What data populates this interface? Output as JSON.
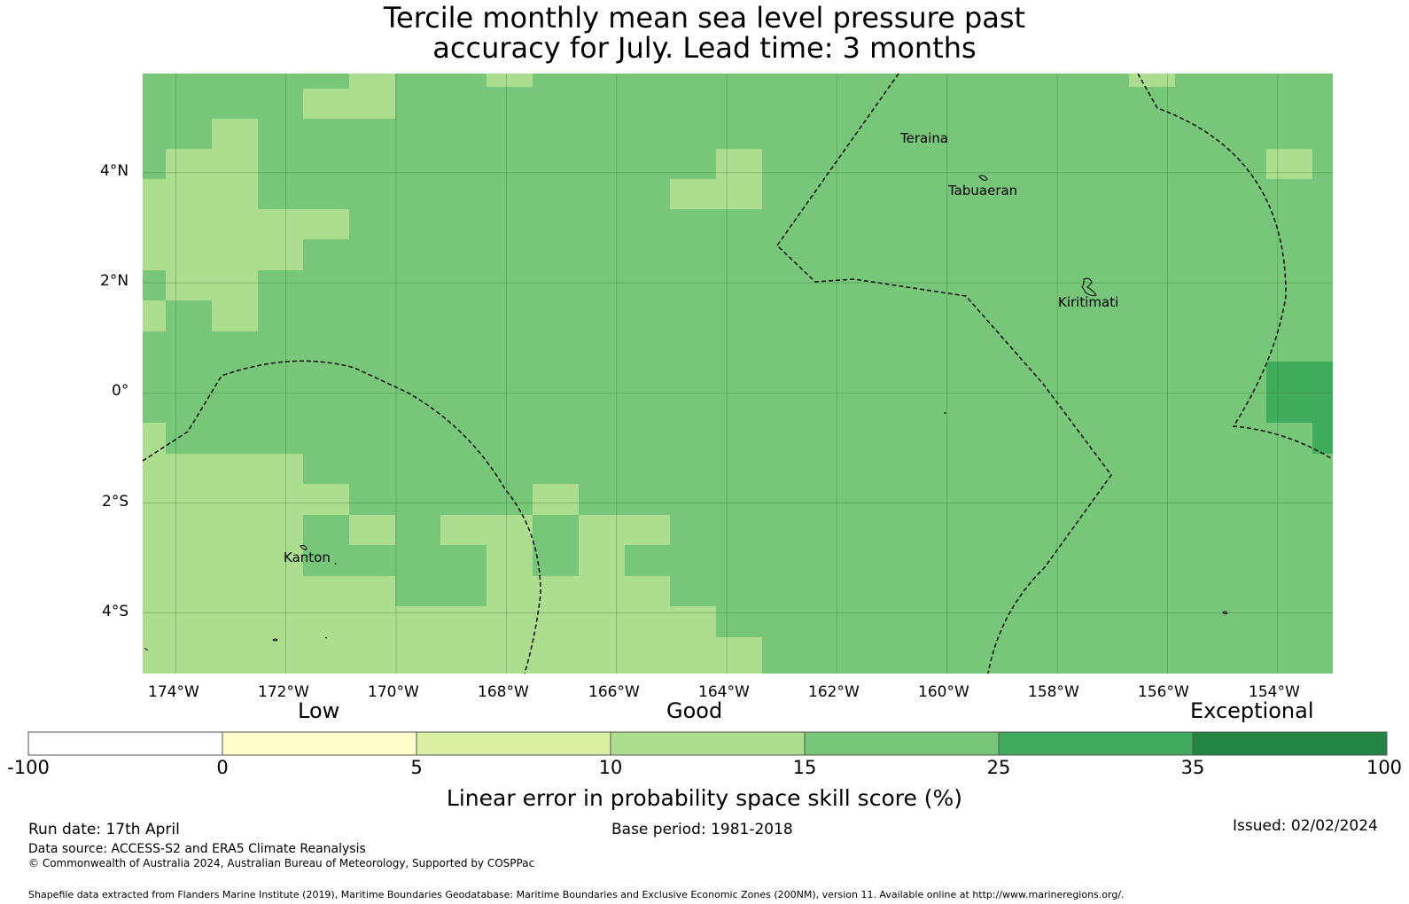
{
  "title_line1": "Tercile monthly mean sea level pressure past",
  "title_line2": "accuracy for July. Lead time: 3 months",
  "map": {
    "lon_labels": [
      "174°W",
      "172°W",
      "170°W",
      "168°W",
      "166°W",
      "164°W",
      "162°W",
      "160°W",
      "158°W",
      "156°W",
      "154°W"
    ],
    "lat_labels": [
      "4°N",
      "2°N",
      "0°",
      "2°S",
      "4°S"
    ],
    "places": [
      "Teraina",
      "Tabuaeran",
      "Kiritimati",
      "Kanton"
    ],
    "grid_lon_values": [
      -174,
      -172,
      -170,
      -168,
      -166,
      -164,
      -162,
      -160,
      -158,
      -156,
      -154
    ],
    "grid_lat_values": [
      4,
      2,
      0,
      -2,
      -4
    ],
    "extent": {
      "lon": [
        -174.6,
        -153.0
      ],
      "lat": [
        -5.1,
        5.8
      ]
    }
  },
  "legend": {
    "categories": [
      "Low",
      "Good",
      "Exceptional"
    ],
    "ticks": [
      "-100",
      "0",
      "5",
      "10",
      "15",
      "25",
      "35",
      "100"
    ],
    "colors": [
      "#ffffff",
      "#ffffcc",
      "#d9f0a3",
      "#addd8e",
      "#78c679",
      "#41ab5d",
      "#238443"
    ],
    "label": "Linear error in probability space skill score (%)"
  },
  "footer": {
    "run_date": "Run date: 17th April",
    "base_period": "Base period: 1981-2018",
    "issued": "Issued: 02/02/2024",
    "data_source": "Data source: ACCESS-S2 and ERA5 Climate Reanalysis",
    "copyright": "© Commonwealth of Australia 2024, Australian Bureau of Meteorology, Supported by COSPPac",
    "shapefile": "Shapefile data extracted from Flanders Marine Institute (2019), Maritime Boundaries Geodatabase: Maritime Boundaries and Exclusive Economic Zones (200NM), version 11. Available online at http://www.marineregions.org/."
  }
}
